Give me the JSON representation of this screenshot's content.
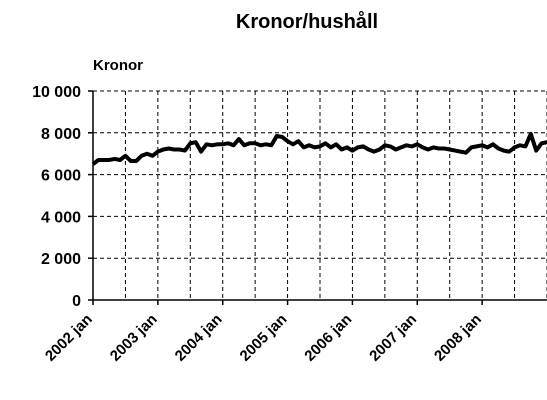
{
  "chart_data": {
    "type": "line",
    "title": "Kronor/hushåll",
    "y_label": "Kronor",
    "categories": [
      "2002 jan",
      null,
      null,
      null,
      null,
      null,
      null,
      null,
      null,
      null,
      null,
      null,
      "2003 jan",
      null,
      null,
      null,
      null,
      null,
      null,
      null,
      null,
      null,
      null,
      null,
      "2004 jan",
      null,
      null,
      null,
      null,
      null,
      null,
      null,
      null,
      null,
      null,
      null,
      "2005 jan",
      null,
      null,
      null,
      null,
      null,
      null,
      null,
      null,
      null,
      null,
      null,
      "2006 jan",
      null,
      null,
      null,
      null,
      null,
      null,
      null,
      null,
      null,
      null,
      null,
      "2007 jan",
      null,
      null,
      null,
      null,
      null,
      null,
      null,
      null,
      null,
      null,
      null,
      "2008 jan",
      null,
      null,
      null,
      null,
      null,
      null,
      null,
      null,
      null,
      null,
      null,
      null
    ],
    "series": [
      {
        "name": "Kronor",
        "color": "#000000",
        "values": [
          6500,
          6700,
          6700,
          6700,
          6750,
          6700,
          6900,
          6650,
          6650,
          6900,
          7000,
          6900,
          7100,
          7200,
          7250,
          7200,
          7200,
          7150,
          7500,
          7550,
          7100,
          7450,
          7400,
          7450,
          7450,
          7500,
          7400,
          7700,
          7400,
          7500,
          7500,
          7400,
          7450,
          7400,
          7850,
          7800,
          7600,
          7450,
          7600,
          7300,
          7400,
          7300,
          7350,
          7500,
          7300,
          7450,
          7200,
          7300,
          7150,
          7300,
          7350,
          7200,
          7100,
          7200,
          7400,
          7350,
          7200,
          7300,
          7400,
          7350,
          7450,
          7300,
          7200,
          7300,
          7250,
          7250,
          7200,
          7150,
          7100,
          7050,
          7300,
          7350,
          7400,
          7300,
          7450,
          7250,
          7150,
          7100,
          7300,
          7400,
          7350,
          7950,
          7150,
          7500,
          7550
        ]
      }
    ],
    "ylim": [
      0,
      10000
    ],
    "yticks": [
      0,
      {
        "value": 2000,
        "label": "2 000"
      },
      {
        "value": 4000,
        "label": "4 000"
      },
      {
        "value": 6000,
        "label": "6 000"
      },
      {
        "value": 8000,
        "label": "8 000"
      },
      {
        "value": 10000,
        "label": "10 000"
      }
    ],
    "grid": true
  }
}
